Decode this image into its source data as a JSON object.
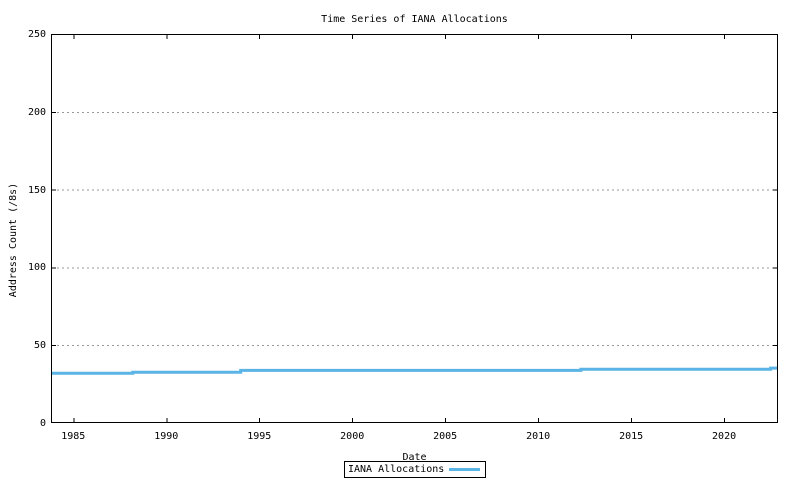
{
  "chart_data": {
    "type": "line",
    "title": "Time Series of IANA Allocations",
    "xlabel": "Date",
    "ylabel": "Address Count (/8s)",
    "x_range": [
      1983.8,
      2022.9
    ],
    "y_range": [
      0,
      250
    ],
    "x_ticks": [
      1985,
      1990,
      1995,
      2000,
      2005,
      2010,
      2015,
      2020
    ],
    "y_ticks": [
      0,
      50,
      100,
      150,
      200,
      250
    ],
    "grid": "horizontal dotted gridlines at y ticks, mirrored inward ticks on all borders",
    "legend_position": "below plot, centered, boxed",
    "series": [
      {
        "name": "IANA Allocations",
        "color": "#5ab4e6",
        "points": [
          [
            1983.8,
            32.0
          ],
          [
            1988.2,
            32.0
          ],
          [
            1988.2,
            32.6
          ],
          [
            1994.0,
            32.6
          ],
          [
            1994.0,
            33.8
          ],
          [
            2012.3,
            33.8
          ],
          [
            2012.3,
            34.6
          ],
          [
            2022.5,
            34.6
          ],
          [
            2022.5,
            35.3
          ],
          [
            2022.9,
            35.3
          ]
        ]
      }
    ]
  },
  "colors": {
    "line": "#5ab4e6",
    "grid": "#999999",
    "axis": "#000000",
    "text": "#000000",
    "background": "#ffffff"
  }
}
